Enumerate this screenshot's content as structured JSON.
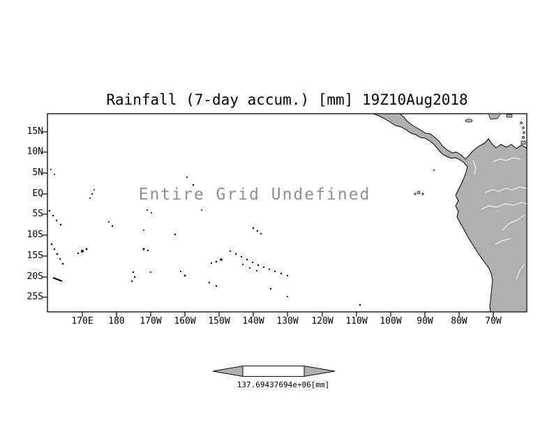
{
  "title": "Rainfall (7-day accum.) [mm] 19Z10Aug2018",
  "annotation": "Entire Grid Undefined",
  "axes": {
    "lat_ticks": [
      "15N",
      "10N",
      "5N",
      "EQ",
      "5S",
      "10S",
      "15S",
      "20S",
      "25S"
    ],
    "lon_ticks": [
      "170E",
      "180",
      "170W",
      "160W",
      "150W",
      "140W",
      "130W",
      "120W",
      "110W",
      "100W",
      "90W",
      "80W",
      "70W"
    ]
  },
  "colorbar": {
    "label": "137.69437694e+06[mm]"
  },
  "colors": {
    "land": "#b0b0b0",
    "annotation_text": "#8f8f8f",
    "frame": "#000000",
    "background": "#ffffff"
  },
  "chart_data": {
    "type": "heatmap",
    "title": "Rainfall (7-day accum.) [mm] 19Z10Aug2018",
    "units": "mm",
    "x_tick_labels": [
      "170E",
      "180",
      "170W",
      "160W",
      "150W",
      "140W",
      "130W",
      "120W",
      "110W",
      "100W",
      "90W",
      "80W",
      "70W"
    ],
    "y_tick_labels": [
      "15N",
      "10N",
      "5N",
      "EQ",
      "5S",
      "10S",
      "15S",
      "20S",
      "25S"
    ],
    "values": [],
    "annotation": "Entire Grid Undefined",
    "colorbar_label": "137.69437694e+06[mm]",
    "grid": false,
    "legend_position": "bottom-center colorbar with left/right overflow arrows",
    "basemap": "Pacific Ocean with Central and South America shaded gray"
  }
}
